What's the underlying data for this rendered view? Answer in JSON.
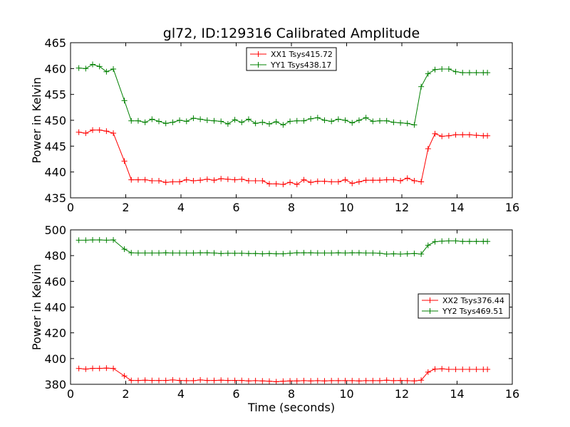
{
  "chart_data": [
    {
      "type": "line",
      "title": "gl72, ID:129316 Calibrated Amplitude",
      "xlabel": "",
      "ylabel": "Power in Kelvin",
      "xlim": [
        0,
        16
      ],
      "ylim": [
        435,
        465
      ],
      "xticks": [
        "0",
        "2",
        "4",
        "6",
        "8",
        "10",
        "12",
        "14",
        "16"
      ],
      "yticks": [
        "435",
        "440",
        "445",
        "450",
        "455",
        "460",
        "465"
      ],
      "legend_position": "top-center",
      "x": [
        0.3,
        0.55,
        0.8,
        1.05,
        1.3,
        1.55,
        1.95,
        2.2,
        2.45,
        2.7,
        2.95,
        3.2,
        3.45,
        3.7,
        3.95,
        4.2,
        4.45,
        4.7,
        4.95,
        5.2,
        5.45,
        5.7,
        5.95,
        6.2,
        6.45,
        6.7,
        6.95,
        7.2,
        7.45,
        7.7,
        7.95,
        8.2,
        8.45,
        8.7,
        8.95,
        9.2,
        9.45,
        9.7,
        9.95,
        10.2,
        10.45,
        10.7,
        10.95,
        11.2,
        11.45,
        11.7,
        11.95,
        12.2,
        12.45,
        12.7,
        12.95,
        13.2,
        13.45,
        13.7,
        13.95,
        14.2,
        14.45,
        14.7,
        14.95,
        15.1
      ],
      "series": [
        {
          "name": "XX1 Tsys415.72",
          "color": "#ff0000",
          "values": [
            447.7,
            447.5,
            448.1,
            448.1,
            447.9,
            447.5,
            442.1,
            438.5,
            438.5,
            438.5,
            438.3,
            438.3,
            438.0,
            438.1,
            438.1,
            438.5,
            438.3,
            438.4,
            438.6,
            438.4,
            438.7,
            438.6,
            438.5,
            438.6,
            438.3,
            438.3,
            438.3,
            437.7,
            437.7,
            437.6,
            438.0,
            437.6,
            438.5,
            438.0,
            438.2,
            438.2,
            438.1,
            438.1,
            438.5,
            437.8,
            438.1,
            438.4,
            438.4,
            438.4,
            438.5,
            438.5,
            438.3,
            438.8,
            438.3,
            438.1,
            444.5,
            447.4,
            446.9,
            447.0,
            447.2,
            447.2,
            447.2,
            447.1,
            447.0,
            447.0
          ]
        },
        {
          "name": "YY1 Tsys438.17",
          "color": "#008000",
          "values": [
            460.1,
            460.0,
            460.8,
            460.4,
            459.4,
            459.9,
            453.8,
            449.9,
            449.9,
            449.6,
            450.2,
            449.8,
            449.4,
            449.6,
            450.0,
            449.8,
            450.4,
            450.2,
            450.0,
            449.9,
            449.8,
            449.3,
            450.1,
            449.6,
            450.2,
            449.4,
            449.6,
            449.3,
            449.7,
            449.1,
            449.8,
            449.9,
            449.9,
            450.3,
            450.5,
            450.0,
            449.8,
            450.2,
            450.0,
            449.5,
            450.0,
            450.5,
            449.8,
            449.9,
            449.9,
            449.6,
            449.5,
            449.4,
            449.1,
            456.5,
            459.0,
            459.8,
            459.9,
            459.9,
            459.4,
            459.2,
            459.2,
            459.2,
            459.2,
            459.2
          ]
        }
      ]
    },
    {
      "type": "line",
      "title": "",
      "xlabel": "Time (seconds)",
      "ylabel": "Power in Kelvin",
      "xlim": [
        0,
        16
      ],
      "ylim": [
        380,
        500
      ],
      "xticks": [
        "0",
        "2",
        "4",
        "6",
        "8",
        "10",
        "12",
        "14",
        "16"
      ],
      "yticks": [
        "380",
        "400",
        "420",
        "440",
        "460",
        "480",
        "500"
      ],
      "legend_position": "center-right",
      "x": [
        0.3,
        0.55,
        0.8,
        1.05,
        1.3,
        1.55,
        1.95,
        2.2,
        2.45,
        2.7,
        2.95,
        3.2,
        3.45,
        3.7,
        3.95,
        4.2,
        4.45,
        4.7,
        4.95,
        5.2,
        5.45,
        5.7,
        5.95,
        6.2,
        6.45,
        6.7,
        6.95,
        7.2,
        7.45,
        7.7,
        7.95,
        8.2,
        8.45,
        8.7,
        8.95,
        9.2,
        9.45,
        9.7,
        9.95,
        10.2,
        10.45,
        10.7,
        10.95,
        11.2,
        11.45,
        11.7,
        11.95,
        12.2,
        12.45,
        12.7,
        12.95,
        13.2,
        13.45,
        13.7,
        13.95,
        14.2,
        14.45,
        14.7,
        14.95,
        15.1
      ],
      "series": [
        {
          "name": "XX2 Tsys376.44",
          "color": "#ff0000",
          "values": [
            392.3,
            391.8,
            392.4,
            392.4,
            392.6,
            392.3,
            386.5,
            383.0,
            383.0,
            383.2,
            383.0,
            383.0,
            383.0,
            383.4,
            383.0,
            382.8,
            382.8,
            383.4,
            383.0,
            383.0,
            383.2,
            383.0,
            383.0,
            383.0,
            382.6,
            382.8,
            382.6,
            382.4,
            382.0,
            382.4,
            382.6,
            382.6,
            382.8,
            382.6,
            382.8,
            382.6,
            382.8,
            382.8,
            382.8,
            382.8,
            382.6,
            382.8,
            382.8,
            382.8,
            383.2,
            382.8,
            383.0,
            382.8,
            382.6,
            383.2,
            389.5,
            391.8,
            392.0,
            391.6,
            391.6,
            391.6,
            391.6,
            391.6,
            391.6,
            391.6
          ]
        },
        {
          "name": "YY2 Tsys469.51",
          "color": "#008000",
          "values": [
            492.0,
            492.0,
            492.2,
            492.2,
            492.0,
            492.2,
            485.0,
            482.2,
            482.0,
            482.0,
            482.0,
            482.0,
            482.2,
            482.0,
            482.0,
            482.0,
            482.0,
            482.2,
            482.2,
            482.0,
            481.6,
            481.8,
            481.8,
            481.8,
            481.6,
            481.6,
            481.4,
            481.6,
            481.4,
            481.4,
            481.8,
            482.2,
            482.2,
            482.2,
            482.0,
            482.0,
            482.0,
            482.2,
            482.0,
            482.2,
            482.2,
            482.0,
            482.0,
            481.8,
            481.2,
            481.4,
            481.2,
            481.4,
            481.6,
            481.2,
            488.0,
            490.8,
            491.2,
            491.4,
            491.4,
            491.0,
            491.0,
            491.0,
            491.0,
            491.0
          ]
        }
      ]
    }
  ]
}
